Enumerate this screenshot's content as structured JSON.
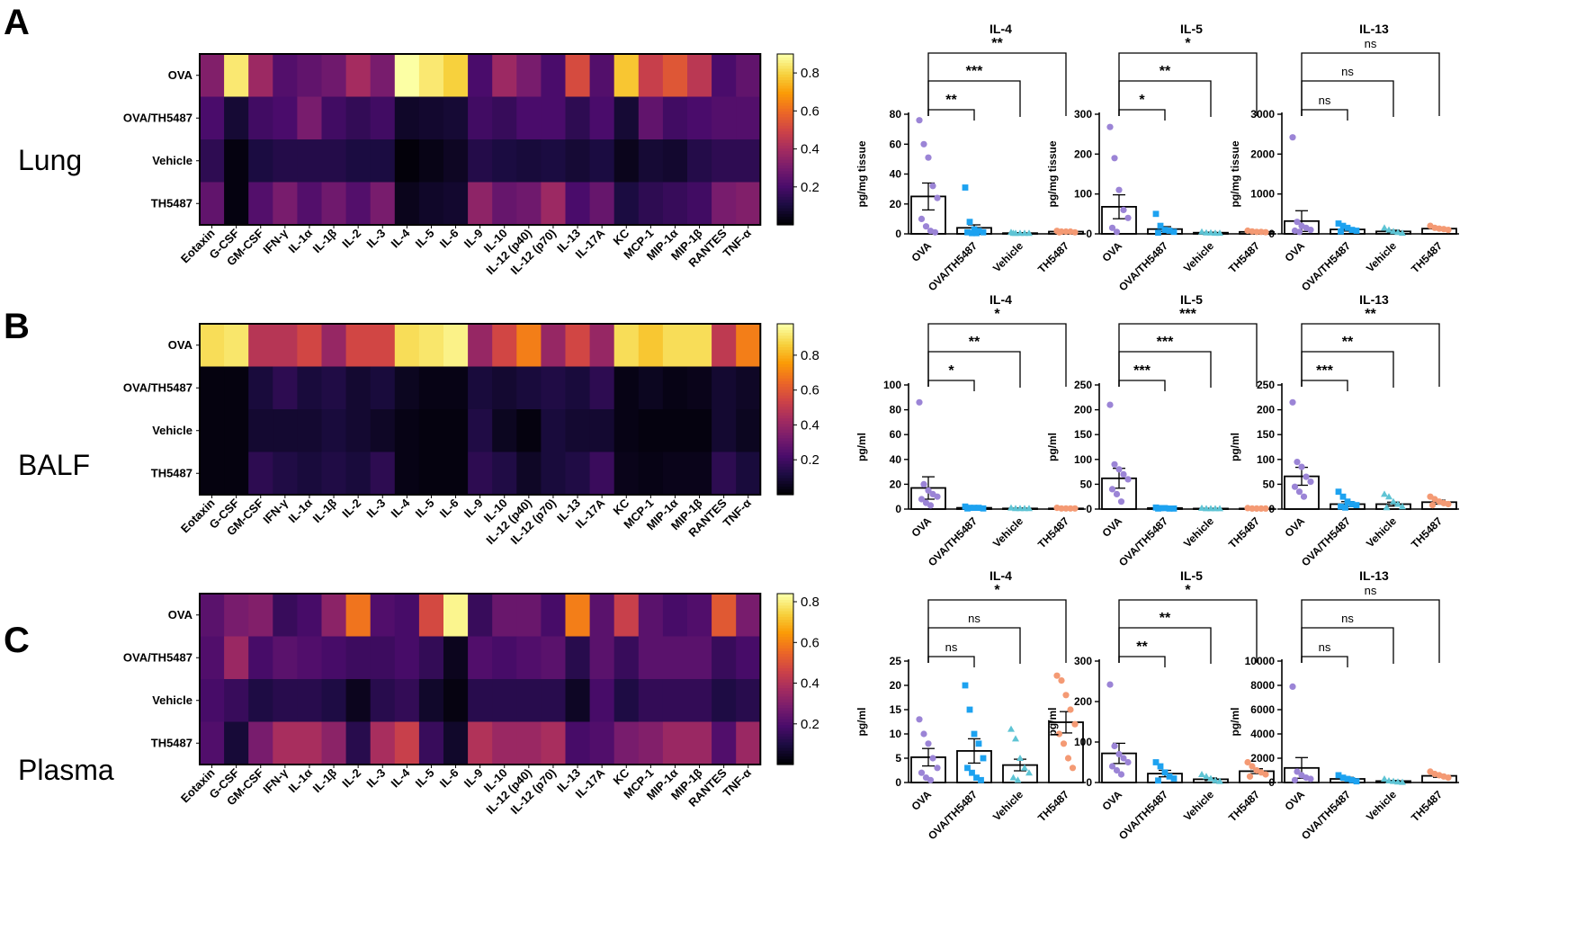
{
  "figure": {
    "panels": [
      {
        "letter": "A",
        "tissue": "Lung"
      },
      {
        "letter": "B",
        "tissue": "BALF"
      },
      {
        "letter": "C",
        "tissue": "Plasma"
      }
    ]
  },
  "chart_data": [
    {
      "type": "heatmap",
      "panel": "A",
      "tissue": "Lung",
      "rows": [
        "OVA",
        "OVA/TH5487",
        "Vehicle",
        "TH5487"
      ],
      "columns": [
        "Eotaxin",
        "G-CSF",
        "GM-CSF",
        "IFN-γ",
        "IL-1α",
        "IL-1β",
        "IL-2",
        "IL-3",
        "IL-4",
        "IL-5",
        "IL-6",
        "IL-9",
        "IL-10",
        "IL-12 (p40)",
        "IL-12 (p70)",
        "IL-13",
        "IL-17A",
        "KC",
        "MCP-1",
        "MIP-1α",
        "MIP-1β",
        "RANTES",
        "TNF-α"
      ],
      "values": [
        [
          0.32,
          0.85,
          0.38,
          0.22,
          0.25,
          0.28,
          0.4,
          0.3,
          0.9,
          0.85,
          0.8,
          0.2,
          0.38,
          0.3,
          0.2,
          0.52,
          0.22,
          0.78,
          0.48,
          0.55,
          0.45,
          0.2,
          0.25
        ],
        [
          0.2,
          0.08,
          0.18,
          0.2,
          0.3,
          0.18,
          0.15,
          0.18,
          0.06,
          0.07,
          0.08,
          0.18,
          0.16,
          0.2,
          0.2,
          0.14,
          0.2,
          0.08,
          0.25,
          0.18,
          0.2,
          0.22,
          0.22
        ],
        [
          0.14,
          0.02,
          0.1,
          0.12,
          0.12,
          0.12,
          0.1,
          0.1,
          0.01,
          0.03,
          0.05,
          0.12,
          0.1,
          0.09,
          0.1,
          0.08,
          0.1,
          0.04,
          0.08,
          0.07,
          0.12,
          0.14,
          0.14
        ],
        [
          0.25,
          0.02,
          0.22,
          0.3,
          0.22,
          0.28,
          0.22,
          0.3,
          0.04,
          0.06,
          0.07,
          0.35,
          0.26,
          0.28,
          0.38,
          0.2,
          0.26,
          0.1,
          0.14,
          0.16,
          0.18,
          0.3,
          0.32
        ]
      ],
      "colorbar": {
        "ticks": [
          0.2,
          0.4,
          0.6,
          0.8
        ],
        "range": [
          0.0,
          0.9
        ]
      }
    },
    {
      "type": "heatmap",
      "panel": "B",
      "tissue": "BALF",
      "rows": [
        "OVA",
        "OVA/TH5487",
        "Vehicle",
        "TH5487"
      ],
      "columns": [
        "Eotaxin",
        "G-CSF",
        "GM-CSF",
        "IFN-γ",
        "IL-1α",
        "IL-1β",
        "IL-2",
        "IL-3",
        "IL-4",
        "IL-5",
        "IL-6",
        "IL-9",
        "IL-10",
        "IL-12 (p40)",
        "IL-12 (p70)",
        "IL-13",
        "IL-17A",
        "KC",
        "MCP-1",
        "MIP-1α",
        "MIP-1β",
        "RANTES",
        "TNF-α"
      ],
      "values": [
        [
          0.9,
          0.92,
          0.48,
          0.48,
          0.55,
          0.4,
          0.55,
          0.55,
          0.9,
          0.92,
          0.95,
          0.4,
          0.55,
          0.7,
          0.4,
          0.55,
          0.4,
          0.9,
          0.85,
          0.9,
          0.9,
          0.5,
          0.7
        ],
        [
          0.02,
          0.02,
          0.1,
          0.15,
          0.1,
          0.12,
          0.08,
          0.1,
          0.05,
          0.03,
          0.03,
          0.1,
          0.08,
          0.1,
          0.12,
          0.1,
          0.15,
          0.03,
          0.05,
          0.03,
          0.04,
          0.08,
          0.06
        ],
        [
          0.02,
          0.02,
          0.08,
          0.08,
          0.08,
          0.1,
          0.08,
          0.06,
          0.03,
          0.02,
          0.02,
          0.12,
          0.05,
          0.02,
          0.1,
          0.08,
          0.08,
          0.03,
          0.02,
          0.02,
          0.02,
          0.08,
          0.05
        ],
        [
          0.02,
          0.02,
          0.15,
          0.12,
          0.1,
          0.12,
          0.1,
          0.15,
          0.03,
          0.02,
          0.02,
          0.15,
          0.12,
          0.06,
          0.1,
          0.12,
          0.18,
          0.04,
          0.03,
          0.04,
          0.04,
          0.15,
          0.1
        ]
      ],
      "colorbar": {
        "ticks": [
          0.2,
          0.4,
          0.6,
          0.8
        ],
        "range": [
          0.0,
          0.98
        ]
      }
    },
    {
      "type": "heatmap",
      "panel": "C",
      "tissue": "Plasma",
      "rows": [
        "OVA",
        "OVA/TH5487",
        "Vehicle",
        "TH5487"
      ],
      "columns": [
        "Eotaxin",
        "G-CSF",
        "GM-CSF",
        "IFN-γ",
        "IL-1α",
        "IL-1β",
        "IL-2",
        "IL-3",
        "IL-4",
        "IL-5",
        "IL-6",
        "IL-9",
        "IL-10",
        "IL-12 (p40)",
        "IL-12 (p70)",
        "IL-13",
        "IL-17A",
        "KC",
        "MCP-1",
        "MIP-1α",
        "MIP-1β",
        "RANTES",
        "TNF-α"
      ],
      "values": [
        [
          0.22,
          0.28,
          0.3,
          0.15,
          0.18,
          0.32,
          0.58,
          0.2,
          0.18,
          0.48,
          0.82,
          0.15,
          0.25,
          0.25,
          0.18,
          0.6,
          0.22,
          0.45,
          0.22,
          0.18,
          0.2,
          0.52,
          0.28
        ],
        [
          0.2,
          0.35,
          0.18,
          0.22,
          0.2,
          0.18,
          0.16,
          0.16,
          0.18,
          0.14,
          0.04,
          0.2,
          0.18,
          0.2,
          0.22,
          0.12,
          0.22,
          0.15,
          0.22,
          0.22,
          0.22,
          0.15,
          0.18
        ],
        [
          0.18,
          0.15,
          0.1,
          0.12,
          0.12,
          0.1,
          0.04,
          0.12,
          0.14,
          0.06,
          0.02,
          0.12,
          0.12,
          0.12,
          0.12,
          0.05,
          0.18,
          0.1,
          0.14,
          0.14,
          0.14,
          0.1,
          0.12
        ],
        [
          0.2,
          0.08,
          0.28,
          0.38,
          0.38,
          0.32,
          0.12,
          0.38,
          0.45,
          0.15,
          0.06,
          0.4,
          0.35,
          0.35,
          0.38,
          0.18,
          0.2,
          0.28,
          0.3,
          0.35,
          0.35,
          0.2,
          0.35
        ]
      ],
      "colorbar": {
        "ticks": [
          0.2,
          0.4,
          0.6,
          0.8
        ],
        "range": [
          0.0,
          0.84
        ]
      }
    },
    {
      "type": "bar",
      "panel": "A",
      "title": "IL-4",
      "ylabel": "pg/mg tissue",
      "ylim": [
        0,
        80
      ],
      "yticks": [
        0,
        20,
        40,
        60,
        80
      ],
      "categories": [
        "OVA",
        "OVA/TH5487",
        "Vehicle",
        "TH5487"
      ],
      "means": [
        25,
        4,
        0.5,
        1.5
      ],
      "sem": [
        9,
        2,
        0.3,
        0.4
      ],
      "points": [
        [
          76,
          60,
          51,
          32,
          24,
          10,
          5,
          2,
          1
        ],
        [
          31,
          8,
          3,
          2,
          1,
          1,
          0.5,
          0.5
        ],
        [
          1,
          0.5,
          0.5,
          0.5,
          0.5,
          0.5
        ],
        [
          2,
          1.5,
          1.5,
          1.5,
          1,
          1
        ]
      ],
      "comparisons": [
        {
          "to": 1,
          "label": "**"
        },
        {
          "to": 2,
          "label": "***"
        },
        {
          "to": 3,
          "label": "**"
        }
      ]
    },
    {
      "type": "bar",
      "panel": "A",
      "title": "IL-5",
      "ylabel": "pg/mg tissue",
      "ylim": [
        0,
        300
      ],
      "yticks": [
        0,
        100,
        200,
        300
      ],
      "categories": [
        "OVA",
        "OVA/TH5487",
        "Vehicle",
        "TH5487"
      ],
      "means": [
        68,
        12,
        3,
        5
      ],
      "sem": [
        30,
        6,
        1,
        1
      ],
      "points": [
        [
          268,
          190,
          110,
          60,
          40,
          15,
          5
        ],
        [
          50,
          20,
          10,
          8,
          5,
          3
        ],
        [
          5,
          3,
          3,
          2,
          2
        ],
        [
          8,
          6,
          5,
          5,
          4
        ]
      ],
      "comparisons": [
        {
          "to": 1,
          "label": "*"
        },
        {
          "to": 2,
          "label": "**"
        },
        {
          "to": 3,
          "label": "*"
        }
      ]
    },
    {
      "type": "bar",
      "panel": "A",
      "title": "IL-13",
      "ylabel": "pg/mg tissue",
      "ylim": [
        0,
        3000
      ],
      "yticks": [
        0,
        1000,
        2000,
        3000
      ],
      "categories": [
        "OVA",
        "OVA/TH5487",
        "Vehicle",
        "TH5487"
      ],
      "means": [
        320,
        110,
        60,
        130
      ],
      "sem": [
        260,
        40,
        30,
        25
      ],
      "points": [
        [
          2420,
          300,
          200,
          150,
          100,
          80,
          50
        ],
        [
          260,
          200,
          150,
          100,
          80,
          60
        ],
        [
          150,
          100,
          60,
          40,
          20
        ],
        [
          200,
          150,
          130,
          120,
          100
        ]
      ],
      "comparisons": [
        {
          "to": 1,
          "label": "ns"
        },
        {
          "to": 2,
          "label": "ns"
        },
        {
          "to": 3,
          "label": "ns"
        }
      ]
    },
    {
      "type": "bar",
      "panel": "B",
      "title": "IL-4",
      "ylabel": "pg/ml",
      "ylim": [
        0,
        100
      ],
      "yticks": [
        0,
        20,
        40,
        60,
        80,
        100
      ],
      "categories": [
        "OVA",
        "OVA/TH5487",
        "Vehicle",
        "TH5487"
      ],
      "means": [
        17,
        1,
        0.5,
        0.5
      ],
      "sem": [
        9,
        0.5,
        0.3,
        0.3
      ],
      "points": [
        [
          86,
          20,
          15,
          12,
          10,
          8,
          5,
          3
        ],
        [
          2,
          1,
          1,
          1,
          0.5,
          0.5
        ],
        [
          1,
          0.5,
          0.5,
          0.5,
          0.5
        ],
        [
          1,
          0.5,
          0.5,
          0.5,
          0.5
        ]
      ],
      "comparisons": [
        {
          "to": 1,
          "label": "*"
        },
        {
          "to": 2,
          "label": "**"
        },
        {
          "to": 3,
          "label": "*"
        }
      ]
    },
    {
      "type": "bar",
      "panel": "B",
      "title": "IL-5",
      "ylabel": "pg/ml",
      "ylim": [
        0,
        250
      ],
      "yticks": [
        0,
        50,
        100,
        150,
        200,
        250
      ],
      "categories": [
        "OVA",
        "OVA/TH5487",
        "Vehicle",
        "TH5487"
      ],
      "means": [
        62,
        2,
        1,
        1
      ],
      "sem": [
        20,
        1,
        0.5,
        0.5
      ],
      "points": [
        [
          210,
          90,
          80,
          70,
          60,
          40,
          30,
          15
        ],
        [
          3,
          2,
          2,
          1,
          1,
          1
        ],
        [
          2,
          1,
          1,
          1,
          1
        ],
        [
          2,
          1,
          1,
          1,
          1
        ]
      ],
      "comparisons": [
        {
          "to": 1,
          "label": "***"
        },
        {
          "to": 2,
          "label": "***"
        },
        {
          "to": 3,
          "label": "***"
        }
      ]
    },
    {
      "type": "bar",
      "panel": "B",
      "title": "IL-13",
      "ylabel": "pg/ml",
      "ylim": [
        0,
        250
      ],
      "yticks": [
        0,
        50,
        100,
        150,
        200,
        250
      ],
      "categories": [
        "OVA",
        "OVA/TH5487",
        "Vehicle",
        "TH5487"
      ],
      "means": [
        66,
        10,
        10,
        14
      ],
      "sem": [
        18,
        5,
        4,
        4
      ],
      "points": [
        [
          215,
          95,
          85,
          65,
          55,
          45,
          35,
          25
        ],
        [
          35,
          25,
          15,
          10,
          8,
          5,
          3
        ],
        [
          30,
          25,
          15,
          10,
          5,
          3
        ],
        [
          25,
          20,
          15,
          12,
          10,
          8
        ]
      ],
      "comparisons": [
        {
          "to": 1,
          "label": "***"
        },
        {
          "to": 2,
          "label": "**"
        },
        {
          "to": 3,
          "label": "**"
        }
      ]
    },
    {
      "type": "bar",
      "panel": "C",
      "title": "IL-4",
      "ylabel": "pg/ml",
      "ylim": [
        0,
        25
      ],
      "yticks": [
        0,
        5,
        10,
        15,
        20,
        25
      ],
      "categories": [
        "OVA",
        "OVA/TH5487",
        "Vehicle",
        "TH5487"
      ],
      "means": [
        5.2,
        6.5,
        3.6,
        12.4
      ],
      "sem": [
        1.8,
        2.5,
        1.2,
        2.2
      ],
      "points": [
        [
          13,
          10,
          8,
          5,
          3,
          2,
          1,
          0.5
        ],
        [
          20,
          15,
          10,
          8,
          5,
          3,
          2,
          1,
          0.5
        ],
        [
          11,
          9,
          5,
          3,
          2,
          1,
          0.5
        ],
        [
          22,
          21,
          18,
          15,
          12,
          10,
          8,
          5,
          3
        ]
      ],
      "comparisons": [
        {
          "to": 1,
          "label": "ns"
        },
        {
          "to": 2,
          "label": "ns"
        },
        {
          "to": 3,
          "label": "*"
        }
      ]
    },
    {
      "type": "bar",
      "panel": "C",
      "title": "IL-5",
      "ylabel": "pg/ml",
      "ylim": [
        0,
        300
      ],
      "yticks": [
        0,
        100,
        200,
        300
      ],
      "categories": [
        "OVA",
        "OVA/TH5487",
        "Vehicle",
        "TH5487"
      ],
      "means": [
        72,
        22,
        8,
        28
      ],
      "sem": [
        25,
        8,
        3,
        6
      ],
      "points": [
        [
          242,
          90,
          70,
          60,
          50,
          40,
          30,
          20
        ],
        [
          50,
          40,
          25,
          15,
          10,
          5
        ],
        [
          20,
          15,
          10,
          5,
          3
        ],
        [
          50,
          40,
          30,
          25,
          20,
          15
        ]
      ],
      "comparisons": [
        {
          "to": 1,
          "label": "**"
        },
        {
          "to": 2,
          "label": "**"
        },
        {
          "to": 3,
          "label": "*"
        }
      ]
    },
    {
      "type": "bar",
      "panel": "C",
      "title": "IL-13",
      "ylabel": "pg/ml",
      "ylim": [
        0,
        10000
      ],
      "yticks": [
        0,
        2000,
        4000,
        6000,
        8000,
        10000
      ],
      "categories": [
        "OVA",
        "OVA/TH5487",
        "Vehicle",
        "TH5487"
      ],
      "means": [
        1200,
        300,
        120,
        550
      ],
      "sem": [
        850,
        120,
        50,
        120
      ],
      "points": [
        [
          7900,
          900,
          600,
          400,
          300,
          200
        ],
        [
          600,
          400,
          300,
          200,
          100
        ],
        [
          300,
          150,
          100,
          50,
          30
        ],
        [
          900,
          700,
          600,
          500,
          400
        ]
      ],
      "comparisons": [
        {
          "to": 1,
          "label": "ns"
        },
        {
          "to": 2,
          "label": "ns"
        },
        {
          "to": 3,
          "label": "ns"
        }
      ]
    }
  ],
  "colors": {
    "group_colors": [
      "#9b84d6",
      "#1da2f0",
      "#5ec4d4",
      "#f49a74"
    ],
    "inferno_stops": [
      "#000004",
      "#1b0c41",
      "#4a0c6b",
      "#781c6d",
      "#a52c60",
      "#cf4446",
      "#ed6925",
      "#fb9b06",
      "#f7d13d",
      "#fcffa4"
    ]
  }
}
